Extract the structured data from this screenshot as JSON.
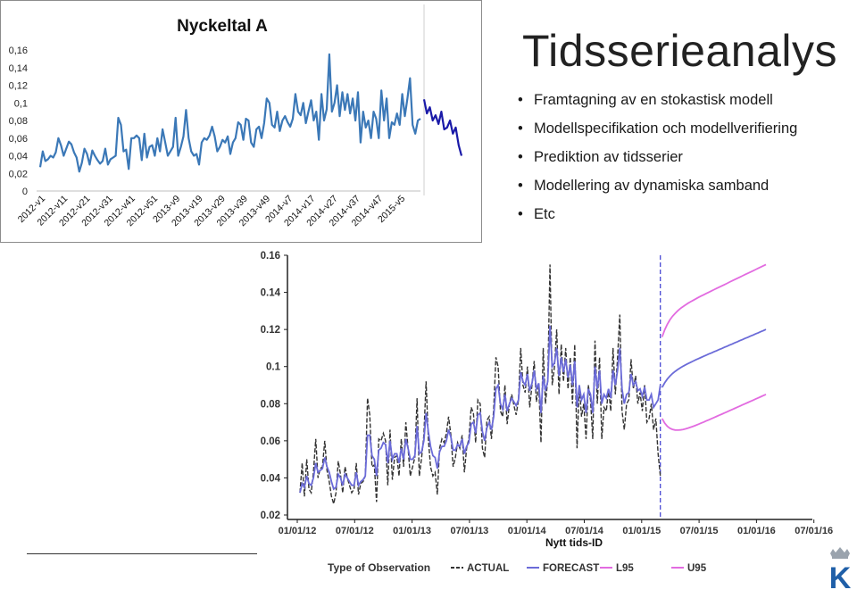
{
  "slide": {
    "title": "Tidsserieanalys",
    "bullets": [
      "Framtagning av en stokastisk modell",
      "Modellspecifikation och modellverifiering",
      "Prediktion av tidsserier",
      "Modellering av dynamiska samband",
      "Etc"
    ]
  },
  "logo": {
    "letter": "K",
    "crown": "crown-icon",
    "color": "#1f5fa8"
  },
  "colors": {
    "series_blue": "#3b78b7",
    "dark_blue": "#1a1aa8",
    "actual": "#333333",
    "forecast": "#6b6bd8",
    "bands": "#e26be0"
  },
  "chart_data": [
    {
      "type": "line",
      "title": "Nyckeltal A",
      "ylim": [
        0,
        0.16
      ],
      "yticks": [
        "0,16",
        "0,14",
        "0,12",
        "0,1",
        "0,08",
        "0,06",
        "0,04",
        "0,02",
        "0"
      ],
      "xticks": [
        "2012-v1",
        "2012-v11",
        "2012-v21",
        "2012-v31",
        "2012-v41",
        "2012-v51",
        "2013-v9",
        "2013-v19",
        "2013-v29",
        "2013-v39",
        "2013-v49",
        "2014-v7",
        "2014-v17",
        "2014-v27",
        "2014-v37",
        "2014-v47",
        "2015-v5"
      ],
      "series": [
        {
          "values": [
            0.027,
            0.045,
            0.034,
            0.036,
            0.04,
            0.038,
            0.044,
            0.06,
            0.052,
            0.04,
            0.048,
            0.056,
            0.053,
            0.044,
            0.038,
            0.022,
            0.032,
            0.048,
            0.042,
            0.03,
            0.046,
            0.04,
            0.035,
            0.031,
            0.034,
            0.048,
            0.03,
            0.036,
            0.038,
            0.04,
            0.083,
            0.075,
            0.045,
            0.047,
            0.025,
            0.06,
            0.06,
            0.063,
            0.06,
            0.035,
            0.065,
            0.038,
            0.05,
            0.052,
            0.04,
            0.06,
            0.045,
            0.07,
            0.055,
            0.04,
            0.045,
            0.05,
            0.083,
            0.04,
            0.05,
            0.062,
            0.092,
            0.06,
            0.045,
            0.04,
            0.042,
            0.03,
            0.055,
            0.06,
            0.058,
            0.063,
            0.073,
            0.062,
            0.045,
            0.05,
            0.058,
            0.055,
            0.062,
            0.042,
            0.055,
            0.06,
            0.078,
            0.075,
            0.058,
            0.082,
            0.08,
            0.055,
            0.05,
            0.07,
            0.073,
            0.06,
            0.077,
            0.105,
            0.1,
            0.075,
            0.072,
            0.09,
            0.068,
            0.08,
            0.085,
            0.078,
            0.073,
            0.082,
            0.11,
            0.09,
            0.086,
            0.1,
            0.077,
            0.09,
            0.103,
            0.08,
            0.09,
            0.058,
            0.11,
            0.08,
            0.093,
            0.155,
            0.09,
            0.1,
            0.12,
            0.085,
            0.112,
            0.092,
            0.11,
            0.088,
            0.105,
            0.08,
            0.112,
            0.055,
            0.09,
            0.072,
            0.08,
            0.06,
            0.09,
            0.082,
            0.06,
            0.114,
            0.08,
            0.105,
            0.06,
            0.078,
            0.075,
            0.088,
            0.075,
            0.11,
            0.085,
            0.105,
            0.128,
            0.075,
            0.065,
            0.08,
            0.082
          ]
        },
        {
          "values": [
            0.104,
            0.088,
            0.095,
            0.08,
            0.086,
            0.076,
            0.09,
            0.07,
            0.072,
            0.08,
            0.065,
            0.072,
            0.052,
            0.04
          ]
        }
      ]
    },
    {
      "type": "line",
      "xlabel": "Nytt tids-ID",
      "ylim": [
        0.02,
        0.16
      ],
      "yticks": [
        "0.16",
        "0.14",
        "0.12",
        "0.1",
        "0.08",
        "0.06",
        "0.04",
        "0.02"
      ],
      "xticks": [
        "01/01/12",
        "07/01/12",
        "01/01/13",
        "07/01/13",
        "01/01/14",
        "07/01/14",
        "01/01/15",
        "07/01/15",
        "01/01/16",
        "07/01/16"
      ],
      "legend": {
        "title": "Type of Observation",
        "items": [
          "ACTUAL",
          "FORECAST",
          "L95",
          "U95"
        ]
      },
      "forecast_start": "2015-03-01",
      "series": [
        {
          "name": "ACTUAL",
          "values": [
            0.032,
            0.048,
            0.03,
            0.05,
            0.034,
            0.032,
            0.043,
            0.061,
            0.04,
            0.045,
            0.046,
            0.06,
            0.044,
            0.038,
            0.03,
            0.026,
            0.032,
            0.049,
            0.042,
            0.032,
            0.046,
            0.04,
            0.036,
            0.032,
            0.034,
            0.048,
            0.031,
            0.037,
            0.038,
            0.041,
            0.083,
            0.074,
            0.046,
            0.047,
            0.027,
            0.061,
            0.06,
            0.064,
            0.06,
            0.036,
            0.066,
            0.039,
            0.051,
            0.052,
            0.041,
            0.061,
            0.046,
            0.07,
            0.056,
            0.041,
            0.046,
            0.051,
            0.083,
            0.041,
            0.051,
            0.063,
            0.092,
            0.061,
            0.046,
            0.041,
            0.043,
            0.031,
            0.056,
            0.061,
            0.059,
            0.064,
            0.073,
            0.063,
            0.046,
            0.051,
            0.059,
            0.056,
            0.063,
            0.043,
            0.056,
            0.061,
            0.078,
            0.075,
            0.059,
            0.082,
            0.08,
            0.056,
            0.051,
            0.071,
            0.073,
            0.061,
            0.077,
            0.105,
            0.1,
            0.076,
            0.073,
            0.09,
            0.069,
            0.08,
            0.085,
            0.079,
            0.074,
            0.082,
            0.11,
            0.09,
            0.086,
            0.1,
            0.078,
            0.09,
            0.103,
            0.081,
            0.09,
            0.059,
            0.11,
            0.08,
            0.093,
            0.155,
            0.09,
            0.1,
            0.12,
            0.085,
            0.112,
            0.092,
            0.11,
            0.088,
            0.105,
            0.08,
            0.112,
            0.056,
            0.09,
            0.073,
            0.08,
            0.061,
            0.09,
            0.082,
            0.061,
            0.114,
            0.08,
            0.105,
            0.061,
            0.078,
            0.076,
            0.088,
            0.076,
            0.11,
            0.085,
            0.105,
            0.128,
            0.076,
            0.066,
            0.08,
            0.082,
            0.104,
            0.088,
            0.095,
            0.08,
            0.086,
            0.076,
            0.09,
            0.07,
            0.072,
            0.08,
            0.066,
            0.072,
            0.053,
            0.041
          ]
        },
        {
          "name": "FORECAST",
          "hist": [
            0.032,
            0.037,
            0.035,
            0.041,
            0.037,
            0.036,
            0.04,
            0.048,
            0.043,
            0.044,
            0.045,
            0.051,
            0.046,
            0.043,
            0.038,
            0.034,
            0.035,
            0.042,
            0.04,
            0.036,
            0.042,
            0.04,
            0.038,
            0.036,
            0.036,
            0.043,
            0.036,
            0.038,
            0.039,
            0.041,
            0.063,
            0.063,
            0.052,
            0.05,
            0.041,
            0.055,
            0.056,
            0.059,
            0.058,
            0.048,
            0.06,
            0.05,
            0.053,
            0.053,
            0.048,
            0.056,
            0.05,
            0.061,
            0.056,
            0.05,
            0.05,
            0.052,
            0.068,
            0.053,
            0.054,
            0.06,
            0.075,
            0.065,
            0.057,
            0.052,
            0.051,
            0.045,
            0.054,
            0.057,
            0.057,
            0.06,
            0.066,
            0.062,
            0.055,
            0.055,
            0.058,
            0.057,
            0.061,
            0.053,
            0.057,
            0.059,
            0.069,
            0.07,
            0.064,
            0.074,
            0.075,
            0.065,
            0.06,
            0.067,
            0.07,
            0.066,
            0.073,
            0.088,
            0.09,
            0.08,
            0.077,
            0.085,
            0.076,
            0.08,
            0.083,
            0.081,
            0.079,
            0.082,
            0.097,
            0.092,
            0.09,
            0.096,
            0.087,
            0.091,
            0.098,
            0.088,
            0.091,
            0.075,
            0.095,
            0.087,
            0.092,
            0.122,
            0.1,
            0.102,
            0.11,
            0.095,
            0.105,
            0.097,
            0.104,
            0.094,
            0.101,
            0.09,
            0.103,
            0.078,
            0.09,
            0.082,
            0.085,
            0.075,
            0.088,
            0.085,
            0.075,
            0.1,
            0.088,
            0.098,
            0.08,
            0.085,
            0.083,
            0.088,
            0.083,
            0.098,
            0.09,
            0.098,
            0.11,
            0.088,
            0.08,
            0.085,
            0.086,
            0.096,
            0.09,
            0.092,
            0.087,
            0.088,
            0.084,
            0.089,
            0.082,
            0.082,
            0.085,
            0.078,
            0.08,
            0.082,
            0.09
          ],
          "future_start": 0.096,
          "future_end": 0.12
        },
        {
          "name": "L95",
          "start": 0.06,
          "end": 0.085
        },
        {
          "name": "U95",
          "start": 0.128,
          "end": 0.155
        }
      ]
    }
  ]
}
